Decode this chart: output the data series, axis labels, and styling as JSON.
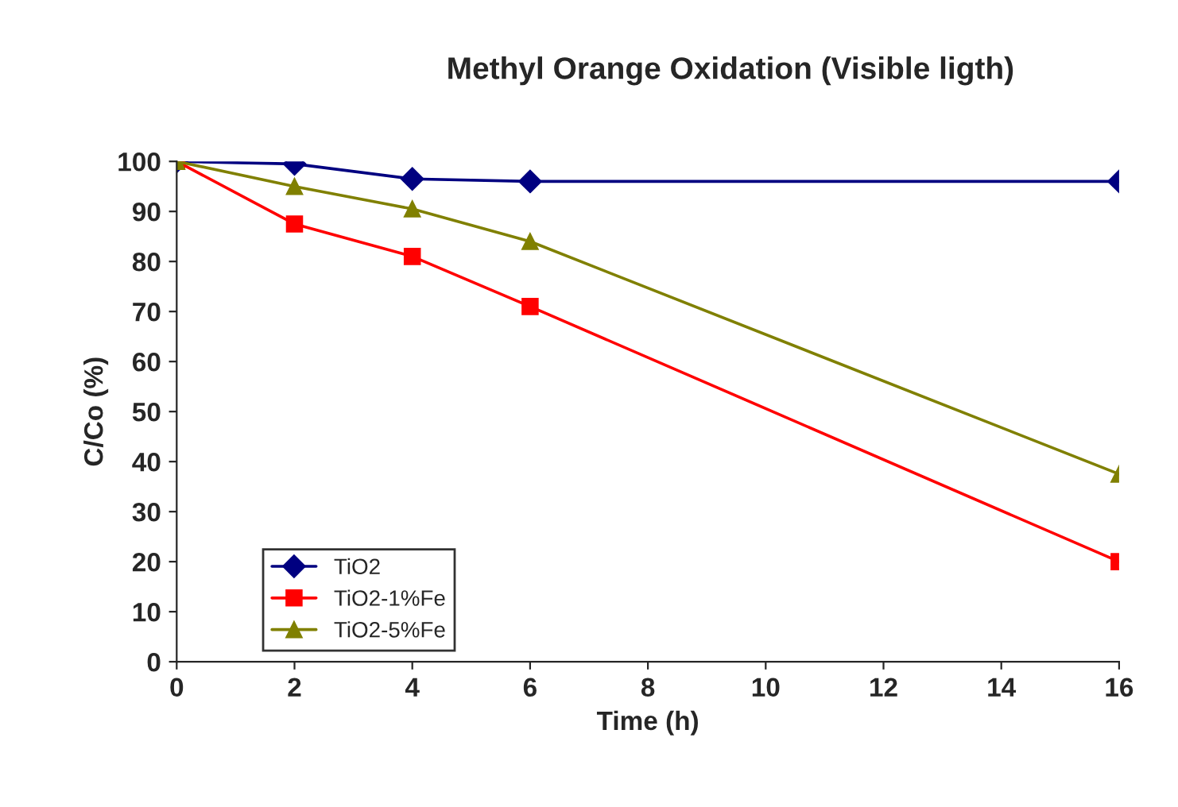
{
  "chart_data": {
    "type": "line",
    "title": "Methyl Orange Oxidation (Visible ligth)",
    "xlabel": "Time (h)",
    "ylabel": "C/Co (%)",
    "x": [
      0,
      2,
      4,
      6,
      16
    ],
    "series": [
      {
        "name": "TiO2",
        "color": "#000080",
        "marker": "diamond",
        "values": [
          100,
          99.5,
          96.5,
          96,
          96
        ]
      },
      {
        "name": "TiO2-1%Fe",
        "color": "#ff0000",
        "marker": "square",
        "values": [
          100,
          87.5,
          81,
          71,
          20
        ]
      },
      {
        "name": "TiO2-5%Fe",
        "color": "#808000",
        "marker": "triangle",
        "values": [
          100,
          95,
          90.5,
          84,
          37.5
        ]
      }
    ],
    "xlim": [
      0,
      16
    ],
    "xticks": [
      0,
      2,
      4,
      6,
      8,
      10,
      12,
      14,
      16
    ],
    "ylim": [
      0,
      100
    ],
    "yticks": [
      0,
      10,
      20,
      30,
      40,
      50,
      60,
      70,
      80,
      90,
      100
    ],
    "grid": false,
    "legend": "bottom left",
    "line_style": "solid"
  }
}
